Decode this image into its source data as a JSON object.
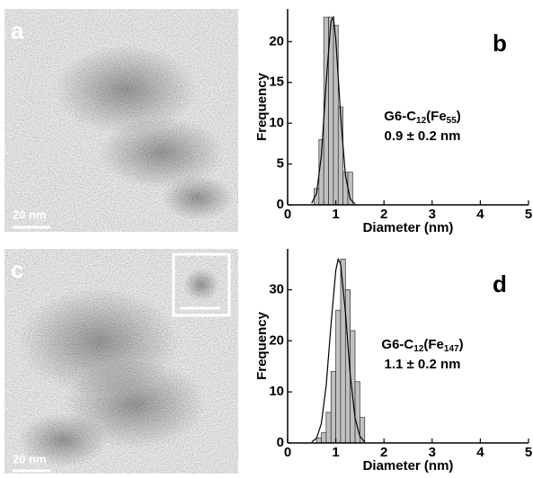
{
  "images": [
    {
      "label": "a",
      "scale_bar": "20 nm"
    },
    {
      "label": "c",
      "scale_bar": "20 nm"
    }
  ],
  "chart_data": [
    {
      "type": "histogram",
      "panel_label": "b",
      "xlabel": "Diameter (nm)",
      "ylabel": "Frequency",
      "annotation": {
        "parts": [
          "G6-C",
          "12",
          "(Fe",
          "55",
          ")"
        ],
        "value": "0.9 ± 0.2 nm"
      },
      "bins": [
        0.55,
        0.65,
        0.75,
        0.85,
        0.95,
        1.05,
        1.15,
        1.25,
        1.35
      ],
      "values": [
        2,
        8,
        23,
        23,
        22,
        12,
        4,
        4
      ],
      "color": "#c0c0c0",
      "curve": {
        "x": [
          0.5,
          0.6,
          0.7,
          0.8,
          0.9,
          0.95,
          1.0,
          1.1,
          1.2,
          1.3,
          1.4
        ],
        "values": [
          0.2,
          1.4,
          6.0,
          15.0,
          22.5,
          23,
          20.3,
          11.0,
          3.6,
          0.7,
          0.1
        ]
      },
      "xlim": [
        0,
        5
      ],
      "ylim": [
        0,
        24
      ],
      "xticks": [
        0,
        1,
        2,
        3,
        4,
        5
      ],
      "yticks": [
        0,
        5,
        10,
        15,
        20
      ]
    },
    {
      "type": "histogram",
      "panel_label": "d",
      "xlabel": "Diameter (nm)",
      "ylabel": "Frequency",
      "annotation": {
        "parts": [
          "G6-C",
          "12",
          "(Fe",
          "147",
          ")"
        ],
        "value": "1.1 ± 0.2 nm"
      },
      "bins": [
        0.6,
        0.7,
        0.8,
        0.9,
        1.0,
        1.1,
        1.2,
        1.3,
        1.4,
        1.5,
        1.6
      ],
      "values": [
        1,
        2,
        6,
        14,
        26,
        36,
        30,
        22,
        12,
        5
      ],
      "color": "#c0c0c0",
      "curve": {
        "x": [
          0.5,
          0.6,
          0.7,
          0.8,
          0.9,
          1.0,
          1.05,
          1.1,
          1.2,
          1.3,
          1.4,
          1.5,
          1.6
        ],
        "values": [
          0.2,
          0.9,
          3.8,
          11.2,
          23.1,
          33.8,
          36,
          35.0,
          25.6,
          13.3,
          4.9,
          1.3,
          0.2
        ]
      },
      "xlim": [
        0,
        5
      ],
      "ylim": [
        0,
        38
      ],
      "xticks": [
        0,
        1,
        2,
        3,
        4,
        5
      ],
      "yticks": [
        0,
        10,
        20,
        30
      ]
    }
  ]
}
